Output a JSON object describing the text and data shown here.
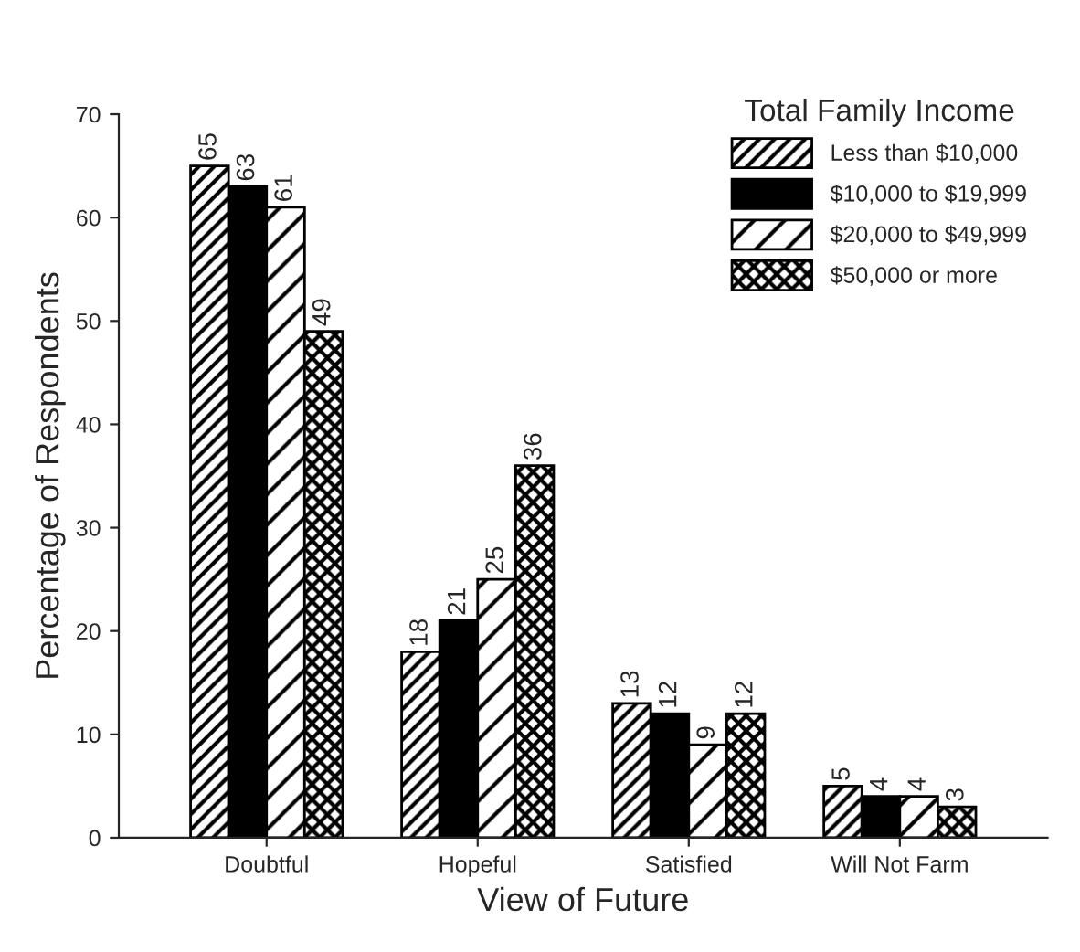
{
  "chart_data": {
    "type": "bar",
    "xlabel": "View of Future",
    "ylabel": "Percentage of Respondents",
    "legend_title": "Total Family Income",
    "categories": [
      "Doubtful",
      "Hopeful",
      "Satisfied",
      "Will Not Farm"
    ],
    "series": [
      {
        "name": "Less than $10,000",
        "color": "#000000",
        "values": [
          65,
          18,
          13,
          5
        ]
      },
      {
        "name": "$10,000 to $19,999",
        "color": "#000000",
        "values": [
          63,
          21,
          12,
          4
        ]
      },
      {
        "name": "$20,000 to $49,999",
        "color": "#000000",
        "values": [
          61,
          25,
          9,
          4
        ]
      },
      {
        "name": "$50,000 or more",
        "color": "#000000",
        "values": [
          49,
          36,
          12,
          3
        ]
      }
    ],
    "ylim": [
      0,
      70
    ],
    "yticks": [
      0,
      10,
      20,
      30,
      40,
      50,
      60,
      70
    ],
    "data_labels": true,
    "legend": "top right",
    "grid": false
  }
}
